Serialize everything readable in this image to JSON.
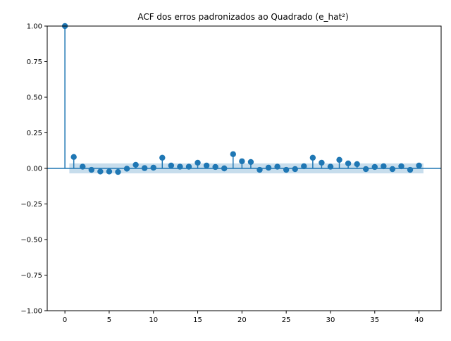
{
  "chart_data": {
    "type": "stem",
    "title": "ACF dos erros padronizados ao Quadrado (e_hat²)",
    "xlabel": "",
    "ylabel": "",
    "xlim": [
      -2,
      42.5
    ],
    "ylim": [
      -1.0,
      1.0
    ],
    "x_ticks": [
      0,
      5,
      10,
      15,
      20,
      25,
      30,
      35,
      40
    ],
    "y_ticks": [
      -1.0,
      -0.75,
      -0.5,
      -0.25,
      0.0,
      0.25,
      0.5,
      0.75,
      1.0
    ],
    "x_tick_labels": [
      "0",
      "5",
      "10",
      "15",
      "20",
      "25",
      "30",
      "35",
      "40"
    ],
    "y_tick_labels": [
      "−1.00",
      "−0.75",
      "−0.50",
      "−0.25",
      "0.00",
      "0.25",
      "0.50",
      "0.75",
      "1.00"
    ],
    "lags": [
      0,
      1,
      2,
      3,
      4,
      5,
      6,
      7,
      8,
      9,
      10,
      11,
      12,
      13,
      14,
      15,
      16,
      17,
      18,
      19,
      20,
      21,
      22,
      23,
      24,
      25,
      26,
      27,
      28,
      29,
      30,
      31,
      32,
      33,
      34,
      35,
      36,
      37,
      38,
      39,
      40
    ],
    "acf": [
      1.0,
      0.08,
      0.012,
      -0.01,
      -0.022,
      -0.022,
      -0.025,
      -0.002,
      0.025,
      0.002,
      0.005,
      0.075,
      0.02,
      0.012,
      0.012,
      0.04,
      0.02,
      0.01,
      0.0,
      0.1,
      0.05,
      0.045,
      -0.01,
      0.005,
      0.012,
      -0.01,
      -0.005,
      0.015,
      0.075,
      0.04,
      0.012,
      0.06,
      0.035,
      0.03,
      -0.005,
      0.01,
      0.015,
      -0.005,
      0.015,
      -0.01,
      0.02
    ],
    "confidence_band": {
      "x_range": [
        0.5,
        40.5
      ],
      "upper": 0.035,
      "lower": -0.035
    },
    "colors": {
      "stem": "#1f77b4",
      "band": "#1f77b4",
      "zero_line": "#1f77b4"
    },
    "grid": false,
    "legend": "none"
  }
}
